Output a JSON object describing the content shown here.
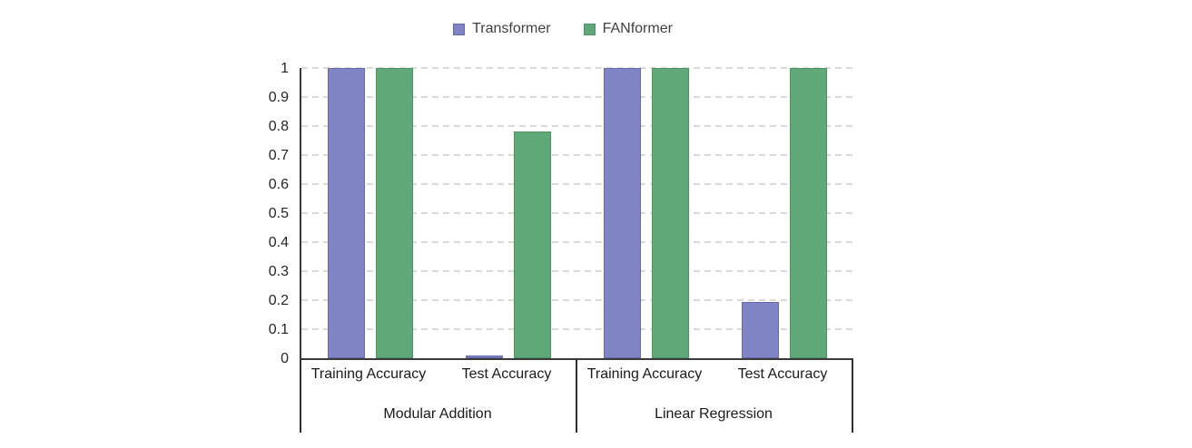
{
  "chart_data": {
    "type": "bar",
    "title": "",
    "xlabel": "",
    "ylabel": "",
    "ylim": [
      0,
      1
    ],
    "grid": "horizontal-dashed",
    "legend_position": "top-center",
    "ytick_labels": [
      "1",
      "0.9",
      "0.8",
      "0.7",
      "0.6",
      "0.5",
      "0.4",
      "0.3",
      "0.2",
      "0.1",
      "0"
    ],
    "categories": [
      "Training Accuracy",
      "Test Accuracy",
      "Training Accuracy",
      "Test Accuracy"
    ],
    "category_groups": [
      {
        "label": "Modular Addition",
        "span": 2
      },
      {
        "label": "Linear Regression",
        "span": 2
      }
    ],
    "series": [
      {
        "name": "Transformer",
        "color": "#8084C4",
        "border_color": "#6468AC",
        "values": [
          1.0,
          0.01,
          1.0,
          0.195
        ]
      },
      {
        "name": "FANformer",
        "color": "#5FA877",
        "border_color": "#4A9464",
        "values": [
          1.0,
          0.78,
          1.0,
          1.0
        ]
      }
    ]
  },
  "colors": {
    "axis": "#3a3a3a",
    "gridline": "#d9d9d9",
    "text": "#262626",
    "legend_text": "#404040",
    "background": "#ffffff"
  }
}
